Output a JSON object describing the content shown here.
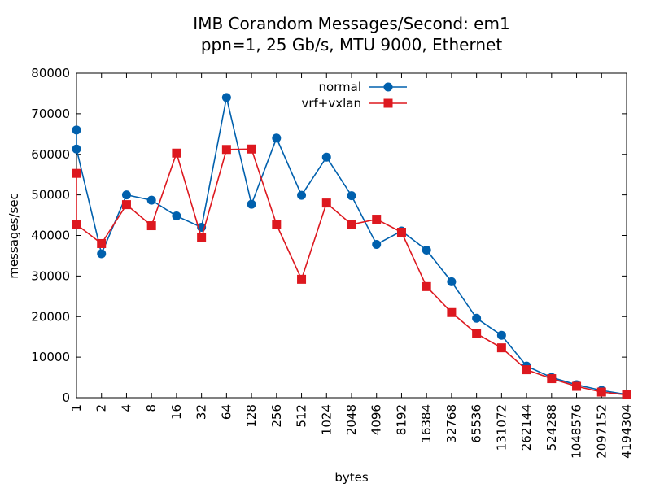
{
  "chart_data": {
    "type": "line",
    "title": "IMB Corandom Messages/Second: em1",
    "subtitle": "ppn=1, 25 Gb/s, MTU 9000, Ethernet",
    "xlabel": "bytes",
    "ylabel": "messages/sec",
    "categories": [
      "1",
      "2",
      "4",
      "8",
      "16",
      "32",
      "64",
      "128",
      "256",
      "512",
      "1024",
      "2048",
      "4096",
      "8192",
      "16384",
      "32768",
      "65536",
      "131072",
      "262144",
      "524288",
      "1048576",
      "2097152",
      "4194304"
    ],
    "yticks": [
      "0",
      "10000",
      "20000",
      "30000",
      "40000",
      "50000",
      "60000",
      "70000",
      "80000"
    ],
    "ylim": [
      0,
      80000
    ],
    "grid": false,
    "legend_position": "top-center",
    "series": [
      {
        "name": "normal",
        "color": "#0060ad",
        "marker": "circle",
        "points": [
          {
            "x": "1",
            "y": 66000
          },
          {
            "x": "1",
            "y": 61300
          },
          {
            "x": "2",
            "y": 35500
          },
          {
            "x": "4",
            "y": 50000
          },
          {
            "x": "8",
            "y": 48700
          },
          {
            "x": "16",
            "y": 44800
          },
          {
            "x": "32",
            "y": 42000
          },
          {
            "x": "64",
            "y": 74000
          },
          {
            "x": "128",
            "y": 47700
          },
          {
            "x": "256",
            "y": 64000
          },
          {
            "x": "512",
            "y": 49900
          },
          {
            "x": "1024",
            "y": 59300
          },
          {
            "x": "2048",
            "y": 49800
          },
          {
            "x": "4096",
            "y": 37800
          },
          {
            "x": "8192",
            "y": 41100
          },
          {
            "x": "16384",
            "y": 36400
          },
          {
            "x": "32768",
            "y": 28600
          },
          {
            "x": "65536",
            "y": 19600
          },
          {
            "x": "131072",
            "y": 15400
          },
          {
            "x": "262144",
            "y": 7800
          },
          {
            "x": "524288",
            "y": 5000
          },
          {
            "x": "1048576",
            "y": 3200
          },
          {
            "x": "2097152",
            "y": 1800
          },
          {
            "x": "4194304",
            "y": 800
          }
        ]
      },
      {
        "name": "vrf+vxlan",
        "color": "#dd181f",
        "marker": "square",
        "points": [
          {
            "x": "1",
            "y": 55300
          },
          {
            "x": "1",
            "y": 42700
          },
          {
            "x": "2",
            "y": 38000
          },
          {
            "x": "4",
            "y": 47600
          },
          {
            "x": "8",
            "y": 42400
          },
          {
            "x": "16",
            "y": 60300
          },
          {
            "x": "32",
            "y": 39400
          },
          {
            "x": "64",
            "y": 61200
          },
          {
            "x": "128",
            "y": 61300
          },
          {
            "x": "256",
            "y": 42700
          },
          {
            "x": "512",
            "y": 29200
          },
          {
            "x": "1024",
            "y": 48000
          },
          {
            "x": "2048",
            "y": 42700
          },
          {
            "x": "4096",
            "y": 44000
          },
          {
            "x": "8192",
            "y": 40800
          },
          {
            "x": "16384",
            "y": 27400
          },
          {
            "x": "32768",
            "y": 21000
          },
          {
            "x": "65536",
            "y": 15800
          },
          {
            "x": "131072",
            "y": 12300
          },
          {
            "x": "262144",
            "y": 6900
          },
          {
            "x": "524288",
            "y": 4700
          },
          {
            "x": "1048576",
            "y": 2800
          },
          {
            "x": "2097152",
            "y": 1400
          },
          {
            "x": "4194304",
            "y": 700
          }
        ]
      }
    ]
  }
}
